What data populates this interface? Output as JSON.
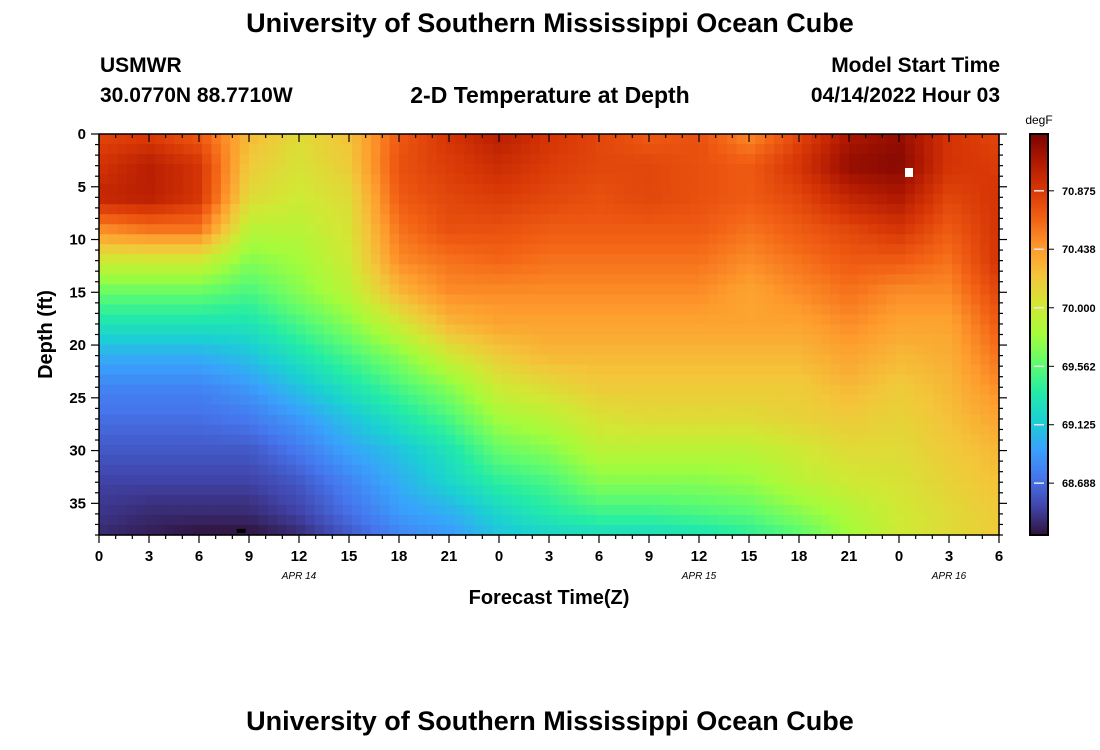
{
  "header": {
    "title": "University of Southern Mississippi Ocean Cube",
    "station": "USMWR",
    "coordinates": "30.0770N  88.7710W",
    "chart_title": "2-D Temperature at Depth",
    "model_start_label": "Model Start Time",
    "model_start_value": "04/14/2022 Hour 03"
  },
  "footer": {
    "title": "University of Southern Mississippi Ocean Cube"
  },
  "chart_data": {
    "type": "heatmap",
    "title": "2-D Temperature at Depth",
    "xlabel": "Forecast Time(Z)",
    "ylabel": "Depth (ft)",
    "xlim": [
      0,
      54
    ],
    "ylim": [
      0,
      38
    ],
    "x_ticks": [
      0,
      3,
      6,
      9,
      12,
      15,
      18,
      21,
      24,
      27,
      30,
      33,
      36,
      39,
      42,
      45,
      48,
      51,
      54
    ],
    "x_tick_labels": [
      "0",
      "3",
      "6",
      "9",
      "12",
      "15",
      "18",
      "21",
      "0",
      "3",
      "6",
      "9",
      "12",
      "15",
      "18",
      "21",
      "0",
      "3",
      "6"
    ],
    "y_ticks": [
      0,
      5,
      10,
      15,
      20,
      25,
      30,
      35
    ],
    "y_tick_labels": [
      "0",
      "5",
      "10",
      "15",
      "20",
      "25",
      "30",
      "35"
    ],
    "date_labels": [
      {
        "x": 12,
        "text": "APR 14"
      },
      {
        "x": 36,
        "text": "APR 15"
      },
      {
        "x": 51,
        "text": "APR 16"
      }
    ],
    "colorbar": {
      "units": "degF",
      "min": 68.3,
      "max": 71.3,
      "ticks": [
        70.875,
        70.438,
        70.0,
        69.562,
        69.125,
        68.688
      ],
      "tick_labels": [
        "70.875",
        "70.438",
        "70.000",
        "69.562",
        "69.125",
        "68.688"
      ],
      "colors": [
        "#30123b",
        "#4145ab",
        "#4675ed",
        "#39a2fc",
        "#1bcfd4",
        "#24eca6",
        "#61fc6c",
        "#a4fc3b",
        "#d1e834",
        "#f3c63a",
        "#fe9b2d",
        "#f36315",
        "#d93806",
        "#b11901",
        "#7a0402"
      ]
    },
    "depth_levels": [
      0,
      3,
      6,
      9,
      12,
      15,
      18,
      21,
      24,
      27,
      30,
      33,
      36,
      38
    ],
    "series": [
      {
        "time": 0,
        "temps": [
          70.8,
          70.9,
          71.0,
          70.5,
          70.0,
          69.6,
          69.3,
          69.0,
          68.8,
          68.7,
          68.6,
          68.5,
          68.45,
          68.4
        ]
      },
      {
        "time": 3,
        "temps": [
          70.85,
          71.05,
          71.05,
          70.6,
          70.0,
          69.6,
          69.3,
          69.0,
          68.8,
          68.7,
          68.6,
          68.5,
          68.4,
          68.35
        ]
      },
      {
        "time": 6,
        "temps": [
          70.7,
          70.9,
          70.9,
          70.6,
          70.0,
          69.6,
          69.3,
          69.0,
          68.8,
          68.7,
          68.6,
          68.5,
          68.4,
          68.3
        ]
      },
      {
        "time": 9,
        "temps": [
          70.3,
          70.2,
          70.1,
          69.9,
          69.7,
          69.5,
          69.3,
          69.1,
          68.9,
          68.75,
          68.6,
          68.5,
          68.4,
          68.3
        ]
      },
      {
        "time": 12,
        "temps": [
          70.1,
          70.05,
          70.0,
          69.9,
          69.8,
          69.7,
          69.5,
          69.3,
          69.1,
          68.9,
          68.75,
          68.6,
          68.5,
          68.4
        ]
      },
      {
        "time": 15,
        "temps": [
          70.25,
          70.2,
          70.1,
          70.05,
          70.0,
          69.9,
          69.7,
          69.5,
          69.3,
          69.1,
          68.95,
          68.8,
          68.7,
          68.6
        ]
      },
      {
        "time": 18,
        "temps": [
          70.7,
          70.75,
          70.7,
          70.6,
          70.5,
          70.3,
          70.0,
          69.7,
          69.5,
          69.3,
          69.1,
          69.0,
          68.9,
          68.8
        ]
      },
      {
        "time": 21,
        "temps": [
          70.9,
          70.85,
          70.8,
          70.75,
          70.6,
          70.5,
          70.3,
          70.0,
          69.7,
          69.5,
          69.3,
          69.2,
          69.0,
          68.9
        ]
      },
      {
        "time": 24,
        "temps": [
          71.05,
          70.95,
          70.85,
          70.75,
          70.65,
          70.5,
          70.4,
          70.2,
          70.0,
          69.8,
          69.6,
          69.4,
          69.2,
          69.1
        ]
      },
      {
        "time": 27,
        "temps": [
          70.9,
          70.85,
          70.8,
          70.7,
          70.6,
          70.5,
          70.4,
          70.3,
          70.1,
          69.9,
          69.7,
          69.5,
          69.35,
          69.2
        ]
      },
      {
        "time": 30,
        "temps": [
          70.8,
          70.8,
          70.75,
          70.7,
          70.6,
          70.5,
          70.4,
          70.3,
          70.2,
          70.05,
          69.9,
          69.7,
          69.45,
          69.25
        ]
      },
      {
        "time": 33,
        "temps": [
          70.7,
          70.8,
          70.8,
          70.7,
          70.6,
          70.5,
          70.4,
          70.3,
          70.2,
          70.1,
          69.9,
          69.7,
          69.45,
          69.25
        ]
      },
      {
        "time": 36,
        "temps": [
          70.75,
          70.75,
          70.75,
          70.7,
          70.6,
          70.5,
          70.4,
          70.3,
          70.2,
          70.1,
          69.9,
          69.7,
          69.5,
          69.3
        ]
      },
      {
        "time": 39,
        "temps": [
          70.5,
          70.7,
          70.7,
          70.6,
          70.5,
          70.4,
          70.4,
          70.3,
          70.2,
          70.1,
          69.9,
          69.75,
          69.55,
          69.4
        ]
      },
      {
        "time": 42,
        "temps": [
          70.8,
          70.9,
          70.8,
          70.7,
          70.6,
          70.5,
          70.4,
          70.3,
          70.2,
          70.15,
          70.0,
          69.9,
          69.7,
          69.55
        ]
      },
      {
        "time": 45,
        "temps": [
          71.1,
          71.2,
          71.0,
          70.8,
          70.7,
          70.6,
          70.5,
          70.4,
          70.3,
          70.2,
          70.1,
          70.0,
          69.85,
          69.8
        ]
      },
      {
        "time": 48,
        "temps": [
          71.2,
          71.25,
          71.1,
          70.9,
          70.7,
          70.5,
          70.4,
          70.3,
          70.2,
          70.15,
          70.1,
          70.05,
          70.0,
          70.0
        ]
      },
      {
        "time": 51,
        "temps": [
          70.9,
          70.9,
          70.8,
          70.7,
          70.6,
          70.5,
          70.4,
          70.35,
          70.3,
          70.25,
          70.2,
          70.15,
          70.1,
          70.1
        ]
      },
      {
        "time": 54,
        "temps": [
          70.8,
          70.85,
          70.9,
          70.9,
          70.9,
          70.8,
          70.7,
          70.6,
          70.5,
          70.4,
          70.3,
          70.25,
          70.2,
          70.2
        ]
      }
    ]
  }
}
